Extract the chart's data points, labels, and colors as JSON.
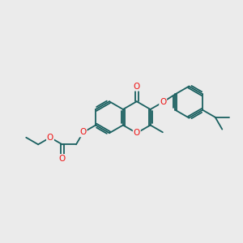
{
  "bg_color": "#ebebeb",
  "bond_color": "#1a6060",
  "atom_color": "#ee1111",
  "bond_width": 1.3,
  "figsize": [
    3.0,
    3.0
  ],
  "dpi": 100,
  "xlim": [
    -1.8,
    2.2
  ],
  "ylim": [
    -1.1,
    1.1
  ]
}
